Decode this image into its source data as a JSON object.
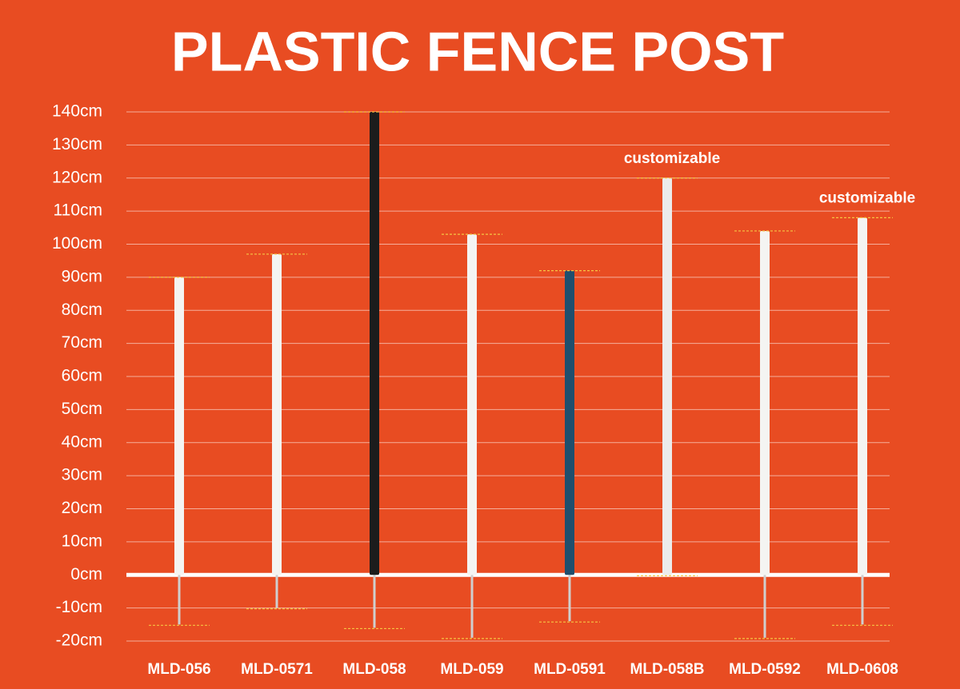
{
  "chart_data": {
    "type": "range",
    "title": "PLASTIC FENCE POST",
    "categories": [
      "MLD-056",
      "MLD-0571",
      "MLD-058",
      "MLD-059",
      "MLD-0591",
      "MLD-058B",
      "MLD-0592",
      "MLD-0608"
    ],
    "values": [
      90,
      97,
      140,
      103,
      92,
      120,
      104,
      108
    ],
    "depths": [
      -15,
      -10,
      -16,
      -19,
      -14,
      0,
      -19,
      -15
    ],
    "colors": [
      "#f4f4f2",
      "#f4f4f2",
      "#1c1c1c",
      "#f4f4f2",
      "#1f4f6e",
      "#ececec",
      "#f4f4f2",
      "#f4f4f2"
    ],
    "annotations": [
      {
        "text": "customizable",
        "at": 5
      },
      {
        "text": "customizable",
        "at": 7
      }
    ],
    "ylim": [
      -20,
      140
    ],
    "yticks": [
      {
        "value": -20,
        "label": "-20cm"
      },
      {
        "value": -10,
        "label": "-10cm"
      },
      {
        "value": 0,
        "label": "0cm"
      },
      {
        "value": 10,
        "label": "10cm"
      },
      {
        "value": 20,
        "label": "20cm"
      },
      {
        "value": 30,
        "label": "30cm"
      },
      {
        "value": 40,
        "label": "40cm"
      },
      {
        "value": 50,
        "label": "50cm"
      },
      {
        "value": 60,
        "label": "60cm"
      },
      {
        "value": 70,
        "label": "70cm"
      },
      {
        "value": 80,
        "label": "80cm"
      },
      {
        "value": 90,
        "label": "90cm"
      },
      {
        "value": 100,
        "label": "100cm"
      },
      {
        "value": 110,
        "label": "110cm"
      },
      {
        "value": 120,
        "label": "120cm"
      },
      {
        "value": 130,
        "label": "130cm"
      },
      {
        "value": 140,
        "label": "140cm"
      }
    ],
    "grid": true
  }
}
